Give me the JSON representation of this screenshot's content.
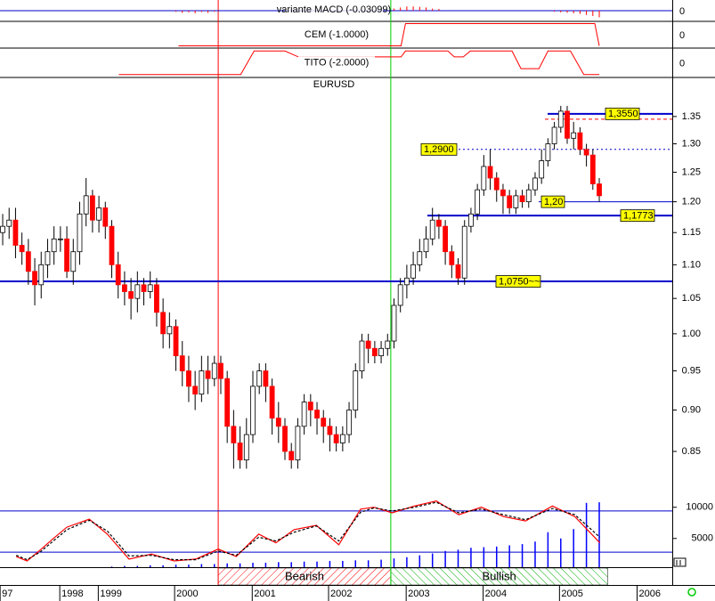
{
  "chart_data": [
    {
      "type": "candlestick",
      "title": "EURUSD",
      "open": [
        1.15,
        1.16,
        1.17,
        1.13,
        1.12,
        1.09,
        1.07,
        1.1,
        1.12,
        1.14,
        1.14,
        1.09,
        1.12,
        1.18,
        1.21,
        1.17,
        1.19,
        1.16,
        1.1,
        1.07,
        1.06,
        1.05,
        1.07,
        1.06,
        1.07,
        1.03,
        1.0,
        1.01,
        0.97,
        0.95,
        0.93,
        0.92,
        0.95,
        0.94,
        0.96,
        0.94,
        0.88,
        0.86,
        0.84,
        0.87,
        0.93,
        0.95,
        0.93,
        0.89,
        0.88,
        0.85,
        0.84,
        0.88,
        0.91,
        0.9,
        0.89,
        0.88,
        0.87,
        0.86,
        0.87,
        0.9,
        0.95,
        0.99,
        0.98,
        0.97,
        0.98,
        0.99,
        1.04,
        1.07,
        1.08,
        1.1,
        1.12,
        1.14,
        1.17,
        1.16,
        1.12,
        1.1,
        1.08,
        1.16,
        1.18,
        1.22,
        1.26,
        1.24,
        1.22,
        1.21,
        1.19,
        1.21,
        1.2,
        1.22,
        1.24,
        1.27,
        1.3,
        1.33,
        1.36,
        1.31,
        1.32,
        1.29,
        1.28,
        1.23
      ],
      "high": [
        1.18,
        1.19,
        1.19,
        1.15,
        1.14,
        1.11,
        1.12,
        1.14,
        1.16,
        1.16,
        1.16,
        1.14,
        1.2,
        1.24,
        1.22,
        1.21,
        1.2,
        1.17,
        1.12,
        1.09,
        1.08,
        1.09,
        1.08,
        1.09,
        1.08,
        1.05,
        1.03,
        1.02,
        0.99,
        0.97,
        0.95,
        0.97,
        0.97,
        0.97,
        0.97,
        0.95,
        0.9,
        0.88,
        0.89,
        0.95,
        0.96,
        0.96,
        0.94,
        0.91,
        0.89,
        0.86,
        0.89,
        0.92,
        0.92,
        0.91,
        0.9,
        0.89,
        0.88,
        0.88,
        0.91,
        0.96,
        1.0,
        1.0,
        0.99,
        0.99,
        1.0,
        1.05,
        1.08,
        1.1,
        1.12,
        1.14,
        1.16,
        1.19,
        1.18,
        1.17,
        1.13,
        1.11,
        1.17,
        1.19,
        1.23,
        1.28,
        1.29,
        1.25,
        1.23,
        1.22,
        1.22,
        1.22,
        1.23,
        1.25,
        1.29,
        1.31,
        1.34,
        1.37,
        1.37,
        1.34,
        1.33,
        1.3,
        1.29,
        1.24
      ],
      "low": [
        1.13,
        1.14,
        1.11,
        1.1,
        1.07,
        1.04,
        1.05,
        1.08,
        1.1,
        1.12,
        1.08,
        1.07,
        1.1,
        1.16,
        1.15,
        1.15,
        1.14,
        1.08,
        1.05,
        1.04,
        1.02,
        1.03,
        1.04,
        1.05,
        1.01,
        0.98,
        0.98,
        0.95,
        0.93,
        0.91,
        0.9,
        0.91,
        0.92,
        0.93,
        0.92,
        0.86,
        0.83,
        0.83,
        0.83,
        0.86,
        0.92,
        0.91,
        0.87,
        0.86,
        0.84,
        0.83,
        0.83,
        0.87,
        0.88,
        0.87,
        0.86,
        0.85,
        0.85,
        0.85,
        0.86,
        0.89,
        0.94,
        0.96,
        0.96,
        0.96,
        0.97,
        0.98,
        1.03,
        1.05,
        1.07,
        1.09,
        1.11,
        1.13,
        1.14,
        1.1,
        1.08,
        1.07,
        1.07,
        1.15,
        1.17,
        1.21,
        1.22,
        1.2,
        1.18,
        1.18,
        1.18,
        1.19,
        1.19,
        1.21,
        1.23,
        1.26,
        1.29,
        1.32,
        1.3,
        1.29,
        1.28,
        1.26,
        1.22,
        1.2
      ],
      "close": [
        1.16,
        1.17,
        1.13,
        1.12,
        1.09,
        1.07,
        1.1,
        1.12,
        1.14,
        1.14,
        1.09,
        1.12,
        1.18,
        1.21,
        1.17,
        1.19,
        1.16,
        1.1,
        1.07,
        1.06,
        1.05,
        1.07,
        1.06,
        1.07,
        1.03,
        1.0,
        1.01,
        0.97,
        0.95,
        0.93,
        0.92,
        0.95,
        0.94,
        0.96,
        0.94,
        0.88,
        0.86,
        0.84,
        0.87,
        0.93,
        0.95,
        0.93,
        0.89,
        0.88,
        0.85,
        0.84,
        0.88,
        0.91,
        0.9,
        0.89,
        0.88,
        0.87,
        0.86,
        0.87,
        0.9,
        0.95,
        0.99,
        0.98,
        0.97,
        0.98,
        0.99,
        1.04,
        1.07,
        1.08,
        1.1,
        1.12,
        1.14,
        1.17,
        1.16,
        1.12,
        1.1,
        1.08,
        1.16,
        1.18,
        1.22,
        1.26,
        1.24,
        1.22,
        1.21,
        1.19,
        1.21,
        1.2,
        1.22,
        1.24,
        1.27,
        1.3,
        1.33,
        1.36,
        1.31,
        1.32,
        1.29,
        1.28,
        1.23,
        1.21
      ],
      "up_color": "#ffffff",
      "down_color": "#ff0000",
      "log_scale": true,
      "xlim": [
        -0.42,
        104.38
      ],
      "xticks": [
        {
          "value": -0.4,
          "label": "97"
        },
        {
          "value": 8.9,
          "label": "1998"
        },
        {
          "value": 14.9,
          "label": "1999"
        },
        {
          "value": 26.8,
          "label": "2000"
        },
        {
          "value": 38.9,
          "label": "2001"
        },
        {
          "value": 50.8,
          "label": "2002"
        },
        {
          "value": 62.9,
          "label": "2003"
        },
        {
          "value": 74.9,
          "label": "2004"
        },
        {
          "value": 86.8,
          "label": "2005"
        },
        {
          "value": 98.9,
          "label": "2006"
        }
      ],
      "ylim": [
        0.8082,
        1.4248
      ],
      "yticks": [
        1.35,
        {
          "value": 1.3,
          "label": "1.30"
        },
        1.25,
        {
          "value": 1.2,
          "label": "1.20"
        },
        1.15,
        {
          "value": 1.1,
          "label": "1.10"
        },
        1.05,
        {
          "value": 1.0,
          "label": "1.00"
        },
        0.95,
        {
          "value": 0.9,
          "label": "0.90"
        },
        0.85
      ],
      "levels": [
        {
          "value": 1.355,
          "label": "1,3550",
          "color": "#0000cc"
        },
        {
          "value": 1.345,
          "color": "#ff0000"
        },
        {
          "value": 1.29,
          "label": "1,2900",
          "color": "#0000cc"
        },
        {
          "value": 1.2,
          "label": "1,20",
          "color": "#0000cc"
        },
        {
          "value": 1.1773,
          "label": "1,1773",
          "color": "#0000cc"
        },
        {
          "value": 1.075,
          "label": "1,0750~~",
          "color": "#0000cc"
        }
      ],
      "regions": [
        {
          "label": "Bearish",
          "from": 33.6,
          "to": 60.5,
          "color": "#ff0000"
        },
        {
          "label": "Bullish",
          "from": 60.5,
          "to": 94.3,
          "color": "#00cc00"
        }
      ]
    },
    {
      "type": "bar",
      "title": "variante MACD (-0.03099)",
      "color": "#ff0000",
      "x": [
        27,
        28,
        29,
        30,
        31,
        32,
        33,
        61,
        62,
        63,
        64,
        65,
        66,
        67,
        68,
        86,
        87,
        88,
        89,
        90,
        91,
        92,
        93
      ],
      "values": [
        -0.005,
        -0.01,
        -0.008,
        -0.012,
        -0.006,
        -0.01,
        -0.005,
        0.01,
        0.015,
        0.02,
        0.02,
        0.018,
        0.015,
        0.01,
        0.008,
        -0.005,
        -0.008,
        -0.01,
        -0.012,
        -0.015,
        -0.02,
        -0.025,
        -0.031
      ],
      "ylim": [
        -0.05,
        0.05
      ],
      "yticks": [
        0
      ],
      "zero_line_color": "#0000cc"
    },
    {
      "type": "line",
      "title": "CEM (-1.0000)",
      "color": "#ff0000",
      "x": [
        27.4,
        62.1,
        62.8,
        92.3,
        93
      ],
      "values": [
        -1,
        -1,
        1,
        1,
        -1
      ],
      "ylim": [
        -1.2,
        1.2
      ],
      "yticks": [
        0
      ]
    },
    {
      "type": "line",
      "title": "TITO (-2.0000)",
      "color": "#ff0000",
      "x": [
        18.1,
        37.1,
        39.2,
        44,
        46.1,
        62.1,
        62.8,
        69.4,
        70.4,
        71.8,
        72.9,
        79.4,
        80.8,
        83.6,
        85,
        88.5,
        90.6,
        93
      ],
      "values": [
        -2,
        -2,
        2,
        2,
        1,
        1,
        2,
        2,
        1,
        1,
        2,
        2,
        -1,
        -1,
        2,
        2,
        -2,
        -2
      ],
      "ylim": [
        -2.5,
        2.5
      ],
      "yticks": [
        0
      ]
    },
    {
      "type": "oscillator",
      "x": [
        2.1,
        3.8,
        5.8,
        7.9,
        10,
        13.5,
        16.3,
        19.7,
        23.2,
        26.7,
        30.1,
        33.6,
        36.4,
        39.9,
        42.6,
        45.4,
        48.9,
        52.4,
        55.8,
        57.9,
        60.7,
        64.2,
        67.6,
        71.1,
        74.6,
        78.1,
        81.5,
        85.7,
        89.2,
        93.1
      ],
      "series": [
        {
          "color": "#ff0000",
          "dashed": false,
          "values": [
            2100,
            1400,
            3100,
            5000,
            6800,
            8100,
            5700,
            1700,
            2500,
            1400,
            1700,
            3300,
            2100,
            5700,
            4300,
            6400,
            7100,
            4000,
            9700,
            10000,
            9100,
            10200,
            11000,
            8800,
            10000,
            8500,
            7800,
            10200,
            8500,
            4300
          ]
        },
        {
          "color": "#000000",
          "dashed": true,
          "values": [
            2300,
            1600,
            2800,
            4600,
            6400,
            7900,
            6200,
            2200,
            2300,
            1600,
            1600,
            3000,
            2300,
            5200,
            4600,
            6000,
            7000,
            4600,
            9200,
            9900,
            9400,
            10000,
            10800,
            9100,
            9700,
            8800,
            8000,
            9800,
            8800,
            5200
          ]
        }
      ],
      "volume": {
        "color": "#0000ff",
        "x": [
          17,
          19,
          21,
          23,
          25,
          27,
          29,
          31,
          33,
          35,
          37,
          39,
          41,
          43,
          45,
          47,
          49,
          51,
          53,
          55,
          57,
          59,
          61,
          63,
          65,
          67,
          69,
          71,
          73,
          75,
          77,
          79,
          81,
          83,
          85,
          87,
          89,
          91,
          93
        ],
        "values": [
          500,
          600,
          600,
          700,
          700,
          800,
          800,
          900,
          900,
          1000,
          1000,
          1100,
          1100,
          1200,
          1200,
          1300,
          1300,
          1400,
          1400,
          1500,
          1500,
          1600,
          1800,
          2000,
          2300,
          2600,
          3000,
          3200,
          3500,
          3600,
          3700,
          3900,
          4100,
          4500,
          6000,
          5000,
          6500,
          10700,
          10800
        ]
      },
      "reference_lines": [
        9400,
        2800
      ],
      "reference_color": "#0000cc",
      "ylim": [
        400,
        12100
      ],
      "yticks": [
        5000,
        10000
      ]
    }
  ]
}
